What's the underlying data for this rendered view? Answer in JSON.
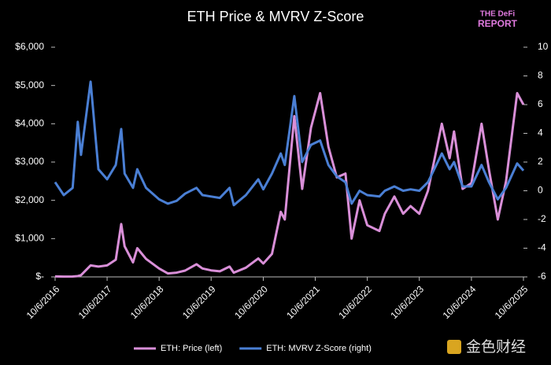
{
  "chart_data": {
    "type": "line",
    "title": "ETH Price & MVRV Z-Score",
    "logo": [
      "THE DeFi",
      "REPORT"
    ],
    "watermark": "金色财经",
    "x": [
      "10/6/2016",
      "12/6/2016",
      "2/6/2017",
      "3/14/2017",
      "4/6/2017",
      "6/12/2017",
      "8/6/2017",
      "10/6/2017",
      "12/6/2017",
      "1/13/2018",
      "2/6/2018",
      "4/6/2018",
      "5/6/2018",
      "7/6/2018",
      "10/6/2018",
      "12/6/2018",
      "2/6/2019",
      "4/6/2019",
      "6/25/2019",
      "8/6/2019",
      "10/6/2019",
      "12/6/2019",
      "2/12/2020",
      "3/13/2020",
      "6/6/2020",
      "9/1/2020",
      "10/6/2020",
      "12/6/2020",
      "2/6/2021",
      "3/6/2021",
      "5/12/2021",
      "7/6/2021",
      "9/6/2021",
      "11/9/2021",
      "1/6/2022",
      "3/6/2022",
      "5/6/2022",
      "6/18/2022",
      "8/13/2022",
      "10/6/2022",
      "12/30/2022",
      "2/6/2023",
      "4/14/2023",
      "6/15/2023",
      "8/6/2023",
      "10/6/2023",
      "12/6/2023",
      "3/12/2024",
      "5/6/2024",
      "6/6/2024",
      "8/5/2024",
      "10/6/2024",
      "12/16/2024",
      "2/6/2025",
      "4/9/2025",
      "6/6/2025",
      "8/23/2025",
      "10/6/2025"
    ],
    "series": [
      {
        "name": "ETH: Price (left)",
        "color": "#d98fd8",
        "axis": "y",
        "values": [
          13,
          8,
          11,
          20,
          45,
          300,
          270,
          300,
          450,
          1380,
          800,
          380,
          750,
          470,
          220,
          90,
          110,
          165,
          330,
          220,
          170,
          145,
          270,
          110,
          240,
          480,
          350,
          600,
          1700,
          1500,
          4200,
          2300,
          3900,
          4800,
          3400,
          2600,
          2700,
          1000,
          2000,
          1350,
          1200,
          1650,
          2100,
          1650,
          1850,
          1650,
          2250,
          4000,
          3100,
          3800,
          2300,
          2450,
          4000,
          2800,
          1500,
          2500,
          4800,
          4500
        ]
      },
      {
        "name": "ETH: MVRV Z-Score (right)",
        "color": "#4a7fd4",
        "axis": "y2",
        "values": [
          0.6,
          -0.3,
          0.2,
          4.8,
          2.5,
          7.6,
          1.5,
          0.8,
          1.8,
          4.3,
          1.2,
          0.2,
          1.5,
          0.2,
          -0.6,
          -0.9,
          -0.7,
          -0.2,
          0.2,
          -0.3,
          -0.4,
          -0.5,
          0.2,
          -1,
          -0.3,
          0.8,
          0.1,
          1.2,
          2.6,
          1.8,
          6.6,
          2.0,
          3.2,
          3.5,
          1.8,
          1.0,
          0.6,
          -0.9,
          0.0,
          -0.3,
          -0.4,
          0.0,
          0.3,
          0.0,
          0.1,
          0.0,
          0.6,
          2.6,
          1.5,
          2.0,
          0.3,
          0.3,
          1.8,
          0.6,
          -0.6,
          0.2,
          1.9,
          1.4
        ]
      }
    ],
    "xlim": [
      "10/6/2016",
      "10/6/2025"
    ],
    "xticks": [
      "10/6/2016",
      "10/6/2017",
      "10/6/2018",
      "10/6/2019",
      "10/6/2020",
      "10/6/2021",
      "10/6/2022",
      "10/6/2023",
      "10/6/2024",
      "10/6/2025"
    ],
    "ylim": [
      0,
      6000
    ],
    "yticks": [
      {
        "value": 0,
        "label": "$-"
      },
      {
        "value": 1000,
        "label": "$1,000"
      },
      {
        "value": 2000,
        "label": "$2,000"
      },
      {
        "value": 3000,
        "label": "$3,000"
      },
      {
        "value": 4000,
        "label": "$4,000"
      },
      {
        "value": 5000,
        "label": "$5,000"
      },
      {
        "value": 6000,
        "label": "$6,000"
      }
    ],
    "y2lim": [
      -6,
      10
    ],
    "y2ticks": [
      -6,
      -4,
      -2,
      0,
      2,
      4,
      6,
      8,
      10
    ],
    "grid": false,
    "legend": "bottom"
  }
}
